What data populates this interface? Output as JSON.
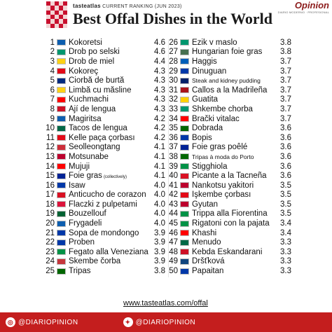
{
  "header": {
    "brand_name": "tasteatlas",
    "brand_tag": "CURRENT RANKING (JUN 2023)",
    "title": "Best Offal Dishes in the World"
  },
  "publisher": {
    "logo_text": "Opinion",
    "logo_sub": "DIARIO MODERNO · PROFESIONAL"
  },
  "items_left": [
    {
      "rank": "1",
      "name": "Kokoretsi",
      "score": "4.6",
      "flag": "#0d5eaf"
    },
    {
      "rank": "2",
      "name": "Drob po selski",
      "score": "4.6",
      "flag": "#00966e"
    },
    {
      "rank": "3",
      "name": "Drob de miel",
      "score": "4.4",
      "flag": "#fcd116"
    },
    {
      "rank": "4",
      "name": "Kokoreç",
      "score": "4.3",
      "flag": "#e30a17"
    },
    {
      "rank": "5",
      "name": "Ciorbă de burtă",
      "score": "4.3",
      "flag": "#002b7f"
    },
    {
      "rank": "6",
      "name": "Limbă cu măsline",
      "score": "4.3",
      "flag": "#fcd116"
    },
    {
      "rank": "7",
      "name": "Kuchmachi",
      "score": "4.3",
      "flag": "#ff0000"
    },
    {
      "rank": "8",
      "name": "Ají de lengua",
      "score": "4.3",
      "flag": "#ce1126"
    },
    {
      "rank": "9",
      "name": "Magiritsa",
      "score": "4.2",
      "flag": "#0d5eaf"
    },
    {
      "rank": "10",
      "name": "Tacos de lengua",
      "score": "4.2",
      "flag": "#006847"
    },
    {
      "rank": "11",
      "name": "Kelle paça çorbası",
      "score": "4.2",
      "flag": "#e30a17"
    },
    {
      "rank": "12",
      "name": "Seolleongtang",
      "score": "4.1",
      "flag": "#cd2e3a"
    },
    {
      "rank": "13",
      "name": "Motsunabe",
      "score": "4.1",
      "flag": "#bc002d"
    },
    {
      "rank": "14",
      "name": "Mujuji",
      "score": "4.1",
      "flag": "#ff0000"
    },
    {
      "rank": "15",
      "name": "Foie gras",
      "note": "(collectively)",
      "score": "4.1",
      "flag": "#002395"
    },
    {
      "rank": "16",
      "name": "Isaw",
      "score": "4.0",
      "flag": "#0038a8"
    },
    {
      "rank": "17",
      "name": "Anticucho de corazon",
      "score": "4.0",
      "flag": "#d91023"
    },
    {
      "rank": "18",
      "name": "Flaczki z pulpetami",
      "score": "4.0",
      "flag": "#dc143c"
    },
    {
      "rank": "19",
      "name": "Bouzellouf",
      "score": "4.0",
      "flag": "#006233"
    },
    {
      "rank": "20",
      "name": "Frygadeli",
      "score": "4.0",
      "flag": "#0d5eaf"
    },
    {
      "rank": "21",
      "name": "Sopa de mondongo",
      "score": "3.9",
      "flag": "#0038a8"
    },
    {
      "rank": "22",
      "name": "Proben",
      "score": "3.9",
      "flag": "#0038a8"
    },
    {
      "rank": "23",
      "name": "Fegato alla Veneziana",
      "score": "3.9",
      "flag": "#009246"
    },
    {
      "rank": "24",
      "name": "Škembe čorba",
      "score": "3.9",
      "flag": "#c6363c"
    },
    {
      "rank": "25",
      "name": "Tripas",
      "score": "3.8",
      "flag": "#006600"
    }
  ],
  "items_right": [
    {
      "rank": "26",
      "name": "Ezik v maslo",
      "score": "3.8",
      "flag": "#00966e"
    },
    {
      "rank": "27",
      "name": "Hungarian foie gras",
      "score": "3.8",
      "flag": "#477050"
    },
    {
      "rank": "28",
      "name": "Haggis",
      "score": "3.7",
      "flag": "#005eb8"
    },
    {
      "rank": "29",
      "name": "Dinuguan",
      "score": "3.7",
      "flag": "#0038a8"
    },
    {
      "rank": "30",
      "name": "Steak and kidney pudding",
      "score": "3.7",
      "flag": "#012169",
      "small": true
    },
    {
      "rank": "31",
      "name": "Callos a la Madrileña",
      "score": "3.7",
      "flag": "#aa151b"
    },
    {
      "rank": "32",
      "name": "Guatita",
      "score": "3.7",
      "flag": "#ffd100"
    },
    {
      "rank": "33",
      "name": "Shkembe chorba",
      "score": "3.7",
      "flag": "#00966e"
    },
    {
      "rank": "34",
      "name": "Brački vitalac",
      "score": "3.7",
      "flag": "#ff0000"
    },
    {
      "rank": "35",
      "name": "Dobrada",
      "score": "3.6",
      "flag": "#006600"
    },
    {
      "rank": "36",
      "name": "Bopis",
      "score": "3.6",
      "flag": "#0038a8"
    },
    {
      "rank": "37",
      "name": "Foie gras poêlé",
      "score": "3.6",
      "flag": "#002395"
    },
    {
      "rank": "38",
      "name": "Tripas à moda do Porto",
      "score": "3.6",
      "flag": "#006600",
      "small": true
    },
    {
      "rank": "39",
      "name": "Stigghiola",
      "score": "3.6",
      "flag": "#009246"
    },
    {
      "rank": "40",
      "name": "Picante a la Tacneña",
      "score": "3.6",
      "flag": "#d91023"
    },
    {
      "rank": "41",
      "name": "Nankotsu yakitori",
      "score": "3.5",
      "flag": "#bc002d"
    },
    {
      "rank": "42",
      "name": "İşkembe çorbası",
      "score": "3.5",
      "flag": "#e30a17"
    },
    {
      "rank": "43",
      "name": "Gyutan",
      "score": "3.5",
      "flag": "#bc002d"
    },
    {
      "rank": "44",
      "name": "Trippa alla Fiorentina",
      "score": "3.5",
      "flag": "#009246"
    },
    {
      "rank": "45",
      "name": "Rigatoni con la pajata",
      "score": "3.4",
      "flag": "#009246"
    },
    {
      "rank": "46",
      "name": "Khashi",
      "score": "3.4",
      "flag": "#ff0000"
    },
    {
      "rank": "47",
      "name": "Menudo",
      "score": "3.3",
      "flag": "#006847"
    },
    {
      "rank": "48",
      "name": "Kebda Eskandarani",
      "score": "3.3",
      "flag": "#ce1126"
    },
    {
      "rank": "49",
      "name": "Dršťková",
      "score": "3.3",
      "flag": "#11457e"
    },
    {
      "rank": "50",
      "name": "Papaitan",
      "score": "3.3",
      "flag": "#0038a8"
    }
  ],
  "source_url": "www.tasteatlas.com/offal",
  "footer": {
    "instagram": "@DIARIOPINION",
    "twitter": "@DIARIOPINION"
  },
  "colors": {
    "footer_bg": "#c41e1e",
    "logo_red": "#c8102e"
  }
}
